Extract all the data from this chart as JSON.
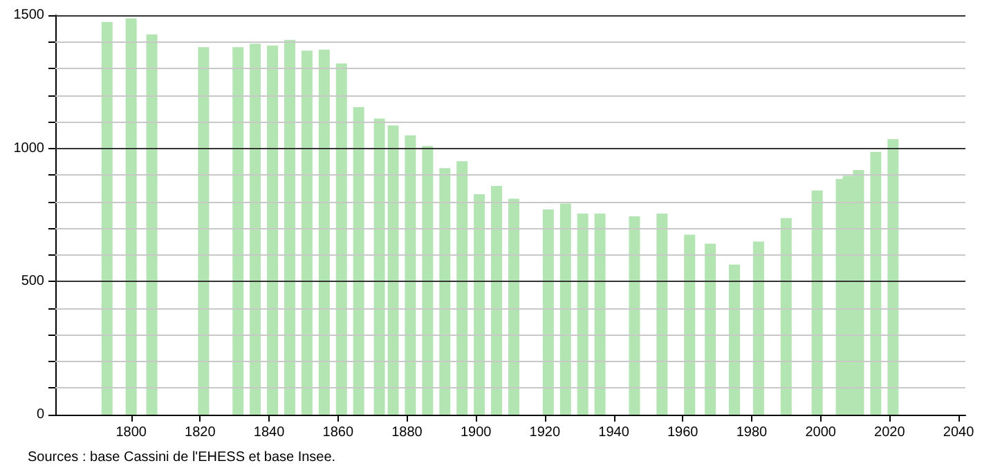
{
  "chart_data": {
    "type": "bar",
    "x": [
      1793,
      1800,
      1806,
      1821,
      1831,
      1836,
      1841,
      1846,
      1851,
      1856,
      1861,
      1866,
      1872,
      1876,
      1881,
      1886,
      1891,
      1896,
      1901,
      1906,
      1911,
      1921,
      1926,
      1931,
      1936,
      1946,
      1954,
      1962,
      1968,
      1975,
      1982,
      1990,
      1999,
      2006,
      2008,
      2011,
      2016,
      2021
    ],
    "values": [
      1475,
      1488,
      1428,
      1380,
      1380,
      1393,
      1386,
      1407,
      1367,
      1371,
      1319,
      1155,
      1112,
      1086,
      1049,
      1009,
      926,
      952,
      828,
      859,
      811,
      771,
      793,
      755,
      755,
      745,
      755,
      676,
      642,
      564,
      650,
      738,
      842,
      885,
      897,
      919,
      987,
      1035
    ],
    "color": "#b3e5b3",
    "xlim": [
      1778,
      2042
    ],
    "xticks": [
      1800,
      1820,
      1840,
      1860,
      1880,
      1900,
      1920,
      1940,
      1960,
      1980,
      2000,
      2020,
      2040
    ],
    "ylim": [
      0,
      1500
    ],
    "yticks": [
      0,
      {
        "value": 100,
        "label": null
      },
      {
        "value": 200,
        "label": null
      },
      {
        "value": 300,
        "label": null
      },
      {
        "value": 400,
        "label": null
      },
      500,
      {
        "value": 600,
        "label": null
      },
      {
        "value": 700,
        "label": null
      },
      {
        "value": 800,
        "label": null
      },
      {
        "value": 900,
        "label": null
      },
      1000,
      {
        "value": 1100,
        "label": null
      },
      {
        "value": 1200,
        "label": null
      },
      {
        "value": 1300,
        "label": null
      },
      {
        "value": 1400,
        "label": null
      },
      1500
    ],
    "grid": "y",
    "annotations": [
      "Sources : base Cassini de l'EHESS et base Insee."
    ]
  }
}
